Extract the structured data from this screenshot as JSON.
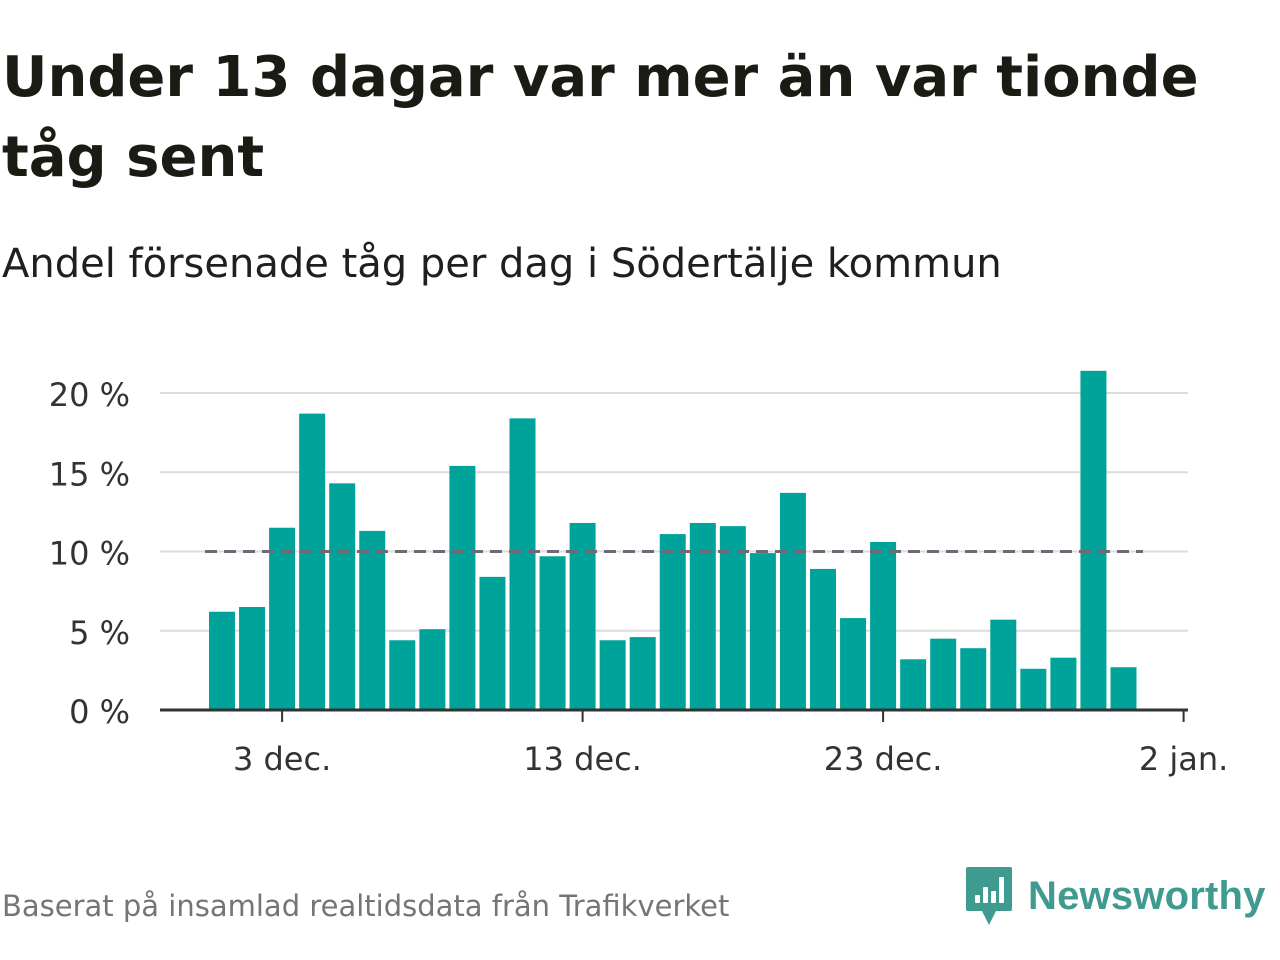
{
  "header": {
    "title": "Under 13 dagar var mer än var tionde tåg sent",
    "subtitle": "Andel försenade tåg per dag i Södertälje kommun"
  },
  "footer": {
    "source": "Baserat på insamlad realtidsdata från Trafikverket",
    "brand": "Newsworthy",
    "brand_icon": "newsworthy-chart-logo-icon"
  },
  "colors": {
    "bar": "#00a39a",
    "grid": "#dcdcdc",
    "axis": "#333333",
    "reference_line": "#6d6a75",
    "brand": "#3f9a8f"
  },
  "chart_data": {
    "type": "bar",
    "x": [
      "1 dec.",
      "2 dec.",
      "3 dec.",
      "4 dec.",
      "5 dec.",
      "6 dec.",
      "7 dec.",
      "8 dec.",
      "9 dec.",
      "10 dec.",
      "11 dec.",
      "12 dec.",
      "13 dec.",
      "14 dec.",
      "15 dec.",
      "16 dec.",
      "17 dec.",
      "18 dec.",
      "19 dec.",
      "20 dec.",
      "21 dec.",
      "22 dec.",
      "23 dec.",
      "24 dec.",
      "25 dec.",
      "26 dec.",
      "27 dec.",
      "28 dec.",
      "29 dec.",
      "30 dec.",
      "31 dec."
    ],
    "values": [
      6.2,
      6.5,
      11.5,
      18.7,
      14.3,
      11.3,
      4.4,
      5.1,
      15.4,
      8.4,
      18.4,
      9.7,
      11.8,
      4.4,
      4.6,
      11.1,
      11.8,
      11.6,
      9.9,
      13.7,
      8.9,
      5.8,
      10.6,
      3.2,
      4.5,
      3.9,
      5.7,
      2.6,
      3.3,
      21.4,
      2.7
    ],
    "ylim": [
      0,
      20
    ],
    "yticks": [
      0,
      5,
      10,
      15,
      20
    ],
    "ytick_labels": [
      "0 %",
      "5 %",
      "10 %",
      "15 %",
      "20 %"
    ],
    "xticks": [
      "3 dec.",
      "13 dec.",
      "23 dec.",
      "2 jan."
    ],
    "reference_line": 10,
    "grid": "horizontal",
    "legend": "none",
    "xlabel": "",
    "ylabel": ""
  }
}
